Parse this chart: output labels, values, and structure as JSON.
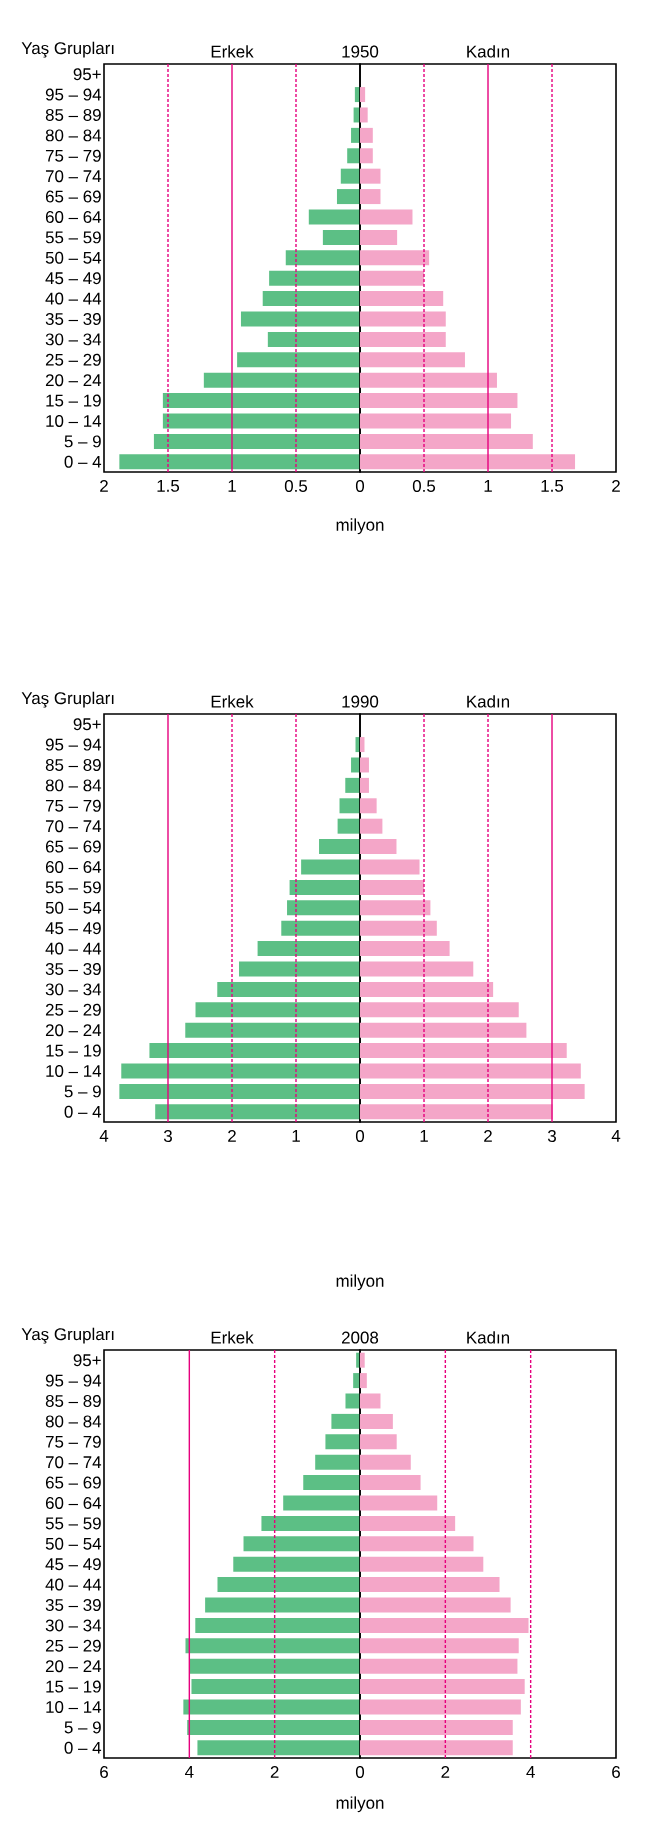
{
  "chart_data": [
    {
      "type": "bar",
      "orientation": "horizontal",
      "title": "1950",
      "ylabel": "Yaş Grupları",
      "xlabel": "milyon",
      "categories": [
        "95+",
        "95 – 94",
        "85 – 89",
        "80 – 84",
        "75 – 79",
        "70 – 74",
        "65 – 69",
        "60 – 64",
        "55 – 59",
        "50 – 54",
        "45 – 49",
        "40 – 44",
        "35 – 39",
        "30 – 34",
        "25 – 29",
        "20 – 24",
        "15 – 19",
        "10 – 14",
        "5 – 9",
        "0 – 4"
      ],
      "series": [
        {
          "name": "Erkek",
          "color": "#5cbf85",
          "values": [
            null,
            0.04,
            0.05,
            0.07,
            0.1,
            0.15,
            0.18,
            0.4,
            0.29,
            0.58,
            0.71,
            0.76,
            0.93,
            0.72,
            0.96,
            1.22,
            1.54,
            1.54,
            1.61,
            1.88
          ]
        }
      ],
      "xlim": [
        2,
        0
      ],
      "xticks": [
        2,
        1.5,
        1,
        0.5
      ],
      "ref_lines": [
        {
          "axis": "x",
          "value": 1.5,
          "color": "#e6007e",
          "line_style": "dashed"
        },
        {
          "axis": "x",
          "value": 1,
          "color": "#e6007e",
          "line_style": "solid"
        },
        {
          "axis": "x",
          "value": 0.5,
          "color": "#e6007e",
          "line_style": "dashed"
        }
      ]
    },
    {
      "type": "bar",
      "orientation": "horizontal",
      "categories": [
        null,
        null,
        null,
        null,
        null,
        null,
        null,
        null,
        null,
        null,
        null,
        null,
        null,
        null,
        null,
        null,
        null,
        null,
        null,
        null
      ],
      "series": [
        {
          "name": "Kadın",
          "color": "#f4a6c8",
          "values": [
            null,
            0.04,
            0.06,
            0.1,
            0.1,
            0.16,
            0.16,
            0.41,
            0.29,
            0.54,
            0.5,
            0.65,
            0.67,
            0.67,
            0.82,
            1.07,
            1.23,
            1.18,
            1.35,
            1.68
          ]
        }
      ],
      "xlim": [
        0,
        2
      ],
      "xticks": [
        0,
        0.5,
        1,
        1.5,
        2
      ],
      "ref_lines": [
        {
          "axis": "x",
          "value": 0.5,
          "color": "#e6007e",
          "line_style": "dashed"
        },
        {
          "axis": "x",
          "value": 1,
          "color": "#e6007e",
          "line_style": "solid"
        },
        {
          "axis": "x",
          "value": 1.5,
          "color": "#e6007e",
          "line_style": "dashed"
        }
      ]
    },
    {
      "type": "bar",
      "orientation": "horizontal",
      "title": "1990",
      "ylabel": "Yaş Grupları",
      "xlabel": "milyon",
      "categories": [
        "95+",
        "95 – 94",
        "85 – 89",
        "80 – 84",
        "75 – 79",
        "70 – 74",
        "65 – 69",
        "60 – 64",
        "55 – 59",
        "50 – 54",
        "45 – 49",
        "40 – 44",
        "35 – 39",
        "30 – 34",
        "25 – 29",
        "20 – 24",
        "15 – 19",
        "10 – 14",
        "5 – 9",
        "0 – 4"
      ],
      "series": [
        {
          "name": "Erkek",
          "color": "#5cbf85",
          "values": [
            null,
            0.07,
            0.14,
            0.23,
            0.32,
            0.35,
            0.64,
            0.92,
            1.1,
            1.14,
            1.23,
            1.6,
            1.89,
            2.23,
            2.57,
            2.73,
            3.29,
            3.73,
            3.76,
            3.2
          ]
        }
      ],
      "xlim": [
        4,
        0
      ],
      "xticks": [
        4,
        3,
        2,
        1
      ],
      "ref_lines": [
        {
          "axis": "x",
          "value": 3,
          "color": "#e6007e",
          "line_style": "solid"
        },
        {
          "axis": "x",
          "value": 2,
          "color": "#e6007e",
          "line_style": "dashed"
        },
        {
          "axis": "x",
          "value": 1,
          "color": "#e6007e",
          "line_style": "dashed"
        }
      ]
    },
    {
      "type": "bar",
      "orientation": "horizontal",
      "categories": [
        null,
        null,
        null,
        null,
        null,
        null,
        null,
        null,
        null,
        null,
        null,
        null,
        null,
        null,
        null,
        null,
        null,
        null,
        null,
        null
      ],
      "series": [
        {
          "name": "Kadın",
          "color": "#f4a6c8",
          "values": [
            null,
            0.07,
            0.14,
            0.14,
            0.26,
            0.35,
            0.57,
            0.93,
            1.0,
            1.1,
            1.2,
            1.4,
            1.77,
            2.08,
            2.48,
            2.6,
            3.23,
            3.45,
            3.51,
            3.01
          ]
        }
      ],
      "xlim": [
        0,
        4
      ],
      "xticks": [
        0,
        1,
        2,
        3,
        4
      ],
      "ref_lines": [
        {
          "axis": "x",
          "value": 1,
          "color": "#e6007e",
          "line_style": "dashed"
        },
        {
          "axis": "x",
          "value": 2,
          "color": "#e6007e",
          "line_style": "dashed"
        },
        {
          "axis": "x",
          "value": 3,
          "color": "#e6007e",
          "line_style": "solid"
        }
      ]
    },
    {
      "type": "bar",
      "orientation": "horizontal",
      "title": "2008",
      "ylabel": "Yaş Grupları",
      "xlabel": "milyon",
      "categories": [
        "95+",
        "95 – 94",
        "85 – 89",
        "80 – 84",
        "75 – 79",
        "70 – 74",
        "65 – 69",
        "60 – 64",
        "55 – 59",
        "50 – 54",
        "45 – 49",
        "40 – 44",
        "35 – 39",
        "30 – 34",
        "25 – 29",
        "20 – 24",
        "15 – 19",
        "10 – 14",
        "5 – 9",
        "0 – 4"
      ],
      "series": [
        {
          "name": "Erkek",
          "color": "#5cbf85",
          "values": [
            0.09,
            0.16,
            0.34,
            0.67,
            0.81,
            1.05,
            1.33,
            1.8,
            2.31,
            2.73,
            2.97,
            3.34,
            3.63,
            3.86,
            4.09,
            4.0,
            3.95,
            4.14,
            4.05,
            3.81
          ]
        }
      ],
      "xlim": [
        6,
        0
      ],
      "xticks": [
        6,
        4,
        2
      ],
      "ref_lines": [
        {
          "axis": "x",
          "value": 4,
          "color": "#e6007e",
          "line_style": "solid"
        },
        {
          "axis": "x",
          "value": 2,
          "color": "#e6007e",
          "line_style": "dashed"
        }
      ]
    },
    {
      "type": "bar",
      "orientation": "horizontal",
      "categories": [
        null,
        null,
        null,
        null,
        null,
        null,
        null,
        null,
        null,
        null,
        null,
        null,
        null,
        null,
        null,
        null,
        null,
        null,
        null,
        null
      ],
      "series": [
        {
          "name": "Kadın",
          "color": "#f4a6c8",
          "values": [
            0.11,
            0.16,
            0.48,
            0.77,
            0.86,
            1.19,
            1.42,
            1.81,
            2.23,
            2.66,
            2.89,
            3.27,
            3.53,
            3.95,
            3.72,
            3.69,
            3.86,
            3.77,
            3.58,
            3.58
          ]
        }
      ],
      "xlim": [
        0,
        6
      ],
      "xticks": [
        0,
        2,
        4,
        6
      ],
      "ref_lines": [
        {
          "axis": "x",
          "value": 2,
          "color": "#e6007e",
          "line_style": "dashed"
        },
        {
          "axis": "x",
          "value": 4,
          "color": "#e6007e",
          "line_style": "dashed"
        }
      ]
    }
  ]
}
